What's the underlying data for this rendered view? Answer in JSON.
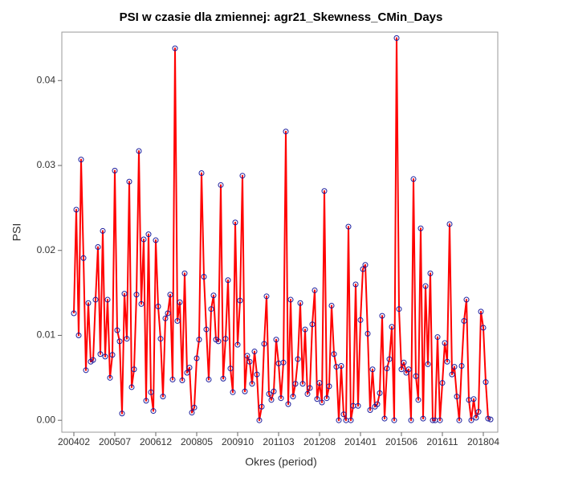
{
  "chart_data": {
    "type": "line",
    "title": "PSI w czasie dla zmiennej: agr21_Skewness_CMin_Days",
    "x_label": "Okres (period)",
    "y_label": "PSI",
    "x": [
      "200402",
      "200403",
      "200404",
      "200405",
      "200406",
      "200407",
      "200408",
      "200409",
      "200410",
      "200411",
      "200412",
      "200501",
      "200502",
      "200503",
      "200504",
      "200505",
      "200506",
      "200507",
      "200508",
      "200509",
      "200510",
      "200511",
      "200512",
      "200601",
      "200602",
      "200603",
      "200604",
      "200605",
      "200606",
      "200607",
      "200608",
      "200609",
      "200610",
      "200611",
      "200612",
      "200701",
      "200702",
      "200703",
      "200704",
      "200705",
      "200706",
      "200707",
      "200708",
      "200709",
      "200710",
      "200711",
      "200712",
      "200801",
      "200802",
      "200803",
      "200804",
      "200805",
      "200806",
      "200807",
      "200808",
      "200809",
      "200810",
      "200811",
      "200812",
      "200901",
      "200902",
      "200903",
      "200904",
      "200905",
      "200906",
      "200907",
      "200908",
      "200909",
      "200910",
      "200911",
      "200912",
      "201001",
      "201002",
      "201003",
      "201004",
      "201005",
      "201006",
      "201007",
      "201008",
      "201009",
      "201010",
      "201011",
      "201012",
      "201101",
      "201102",
      "201103",
      "201104",
      "201105",
      "201106",
      "201107",
      "201108",
      "201109",
      "201110",
      "201111",
      "201112",
      "201201",
      "201202",
      "201203",
      "201204",
      "201205",
      "201206",
      "201207",
      "201208",
      "201209",
      "201210",
      "201211",
      "201212",
      "201301",
      "201302",
      "201303",
      "201304",
      "201305",
      "201306",
      "201307",
      "201308",
      "201309",
      "201310",
      "201311",
      "201312",
      "201401",
      "201402",
      "201403",
      "201404",
      "201405",
      "201406",
      "201407",
      "201408",
      "201409",
      "201410",
      "201411",
      "201412",
      "201501",
      "201502",
      "201503",
      "201504",
      "201505",
      "201506",
      "201507",
      "201508",
      "201509",
      "201510",
      "201511",
      "201512",
      "201601",
      "201602",
      "201603",
      "201604",
      "201605",
      "201606",
      "201607",
      "201608",
      "201609",
      "201610",
      "201611",
      "201612",
      "201701",
      "201702",
      "201703",
      "201704",
      "201705",
      "201706",
      "201707",
      "201708",
      "201709",
      "201710",
      "201711",
      "201712",
      "201801",
      "201802",
      "201803",
      "201804",
      "201805",
      "201806",
      "201807"
    ],
    "values": [
      0.0126,
      0.0248,
      0.01,
      0.0307,
      0.0191,
      0.0059,
      0.0138,
      0.0069,
      0.0071,
      0.0142,
      0.0204,
      0.0078,
      0.0223,
      0.0075,
      0.0142,
      0.005,
      0.0077,
      0.0294,
      0.0106,
      0.0093,
      0.0008,
      0.0149,
      0.0096,
      0.0281,
      0.0039,
      0.006,
      0.0148,
      0.0317,
      0.0137,
      0.0213,
      0.0023,
      0.0219,
      0.0033,
      0.0011,
      0.0212,
      0.0134,
      0.0096,
      0.0028,
      0.012,
      0.0126,
      0.0148,
      0.0048,
      0.0438,
      0.0117,
      0.0139,
      0.0047,
      0.0173,
      0.0056,
      0.0062,
      0.0009,
      0.0015,
      0.0073,
      0.0095,
      0.0291,
      0.0169,
      0.0107,
      0.0048,
      0.0131,
      0.0147,
      0.0095,
      0.0093,
      0.0277,
      0.0049,
      0.0096,
      0.0165,
      0.0061,
      0.0033,
      0.0233,
      0.0089,
      0.0141,
      0.0288,
      0.0034,
      0.0076,
      0.0069,
      0.0043,
      0.0081,
      0.0054,
      0.0,
      0.0016,
      0.009,
      0.0146,
      0.0031,
      0.0024,
      0.0034,
      0.0095,
      0.0067,
      0.0026,
      0.0068,
      0.034,
      0.0019,
      0.0142,
      0.0028,
      0.0043,
      0.0072,
      0.0138,
      0.0043,
      0.0107,
      0.0031,
      0.0038,
      0.0113,
      0.0153,
      0.0025,
      0.0044,
      0.0021,
      0.027,
      0.0026,
      0.004,
      0.0135,
      0.0078,
      0.0063,
      0.0,
      0.0064,
      0.0007,
      0.0,
      0.0228,
      0.0,
      0.0017,
      0.016,
      0.0017,
      0.0118,
      0.0178,
      0.0183,
      0.0102,
      0.0012,
      0.006,
      0.0016,
      0.0019,
      0.0032,
      0.0123,
      0.0002,
      0.0061,
      0.0072,
      0.011,
      0.0,
      0.045,
      0.0131,
      0.006,
      0.0068,
      0.0056,
      0.006,
      0.0,
      0.0284,
      0.0052,
      0.0024,
      0.0226,
      0.0002,
      0.0158,
      0.0066,
      0.0173,
      0.0,
      0.0,
      0.0098,
      0.0,
      0.0044,
      0.0091,
      0.0069,
      0.0231,
      0.0054,
      0.0063,
      0.0028,
      0.0,
      0.0064,
      0.0117,
      0.0142,
      0.0024,
      0.0,
      0.0025,
      0.0003,
      0.001,
      0.0128,
      0.0109,
      0.0045,
      0.0002,
      0.0001
    ],
    "color": "#ff0000",
    "marker_color": "#1c1c9c",
    "xticks": [
      "200402",
      "200507",
      "200612",
      "200805",
      "200910",
      "201103",
      "201208",
      "201401",
      "201506",
      "201611",
      "201804"
    ],
    "ylim": [
      -0.0014,
      0.0457
    ],
    "yticks": [
      {
        "value": 0,
        "label": "0.00"
      },
      {
        "value": 0.01,
        "label": "0.01"
      },
      {
        "value": 0.02,
        "label": "0.02"
      },
      {
        "value": 0.03,
        "label": "0.03"
      },
      {
        "value": 0.04,
        "label": "0.04"
      }
    ]
  }
}
